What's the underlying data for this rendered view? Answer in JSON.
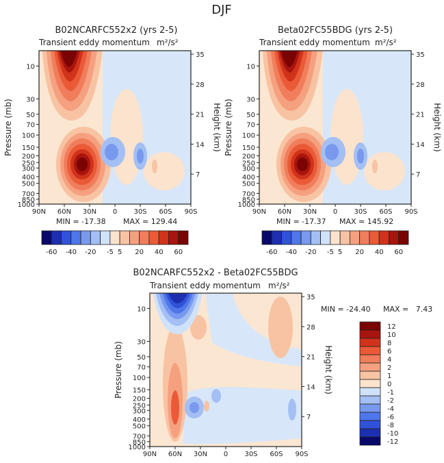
{
  "page_title": "DJF",
  "panels": [
    {
      "title": "B02NCARFC552x2 (yrs 2-5)",
      "subtitle": "Transient eddy momentum",
      "units": "m²/s²",
      "min_label": "MIN = -17.38",
      "max_label": "MAX = 129.44"
    },
    {
      "title": "Beta02FC55BDG (yrs 2-5)",
      "subtitle": "Transient eddy momentum",
      "units": "m²/s²",
      "min_label": "MIN = -17.37",
      "max_label": "MAX = 145.92"
    },
    {
      "title": "B02NCARFC552x2 - Beta02FC55BDG",
      "subtitle": "Transient eddy momentum",
      "units": "m²/s²",
      "min_label": "MIN = -24.40",
      "max_label": "MAX =   7.43"
    }
  ],
  "axes": {
    "ylabel_left": "Pressure (mb)",
    "ylabel_right": "Height (km)",
    "x_ticks": [
      "90N",
      "60N",
      "30N",
      "0",
      "30S",
      "60S",
      "90S"
    ],
    "p_ticks": [
      "10",
      "30",
      "50",
      "70",
      "100",
      "150",
      "200",
      "250",
      "300",
      "400",
      "500",
      "700",
      "850",
      "1000"
    ],
    "h_ticks": [
      "35",
      "28",
      "21",
      "14",
      "7"
    ]
  },
  "legend_top": {
    "labels": [
      "-60",
      "-40",
      "-20",
      "-5",
      "5",
      "20",
      "40",
      "60"
    ],
    "colors": [
      "#08086b",
      "#1c2fb0",
      "#2f52d8",
      "#4f76ea",
      "#7899ee",
      "#a3bff4",
      "#cfe2f9",
      "#fbe3cd",
      "#f8c3a3",
      "#f5a07f",
      "#f07d5b",
      "#ea5a37",
      "#d0331a",
      "#a8140e",
      "#7a0404"
    ]
  },
  "legend_diff": {
    "labels": [
      "12",
      "10",
      "8",
      "6",
      "4",
      "2",
      "1",
      "0",
      "-1",
      "-2",
      "-4",
      "-6",
      "-8",
      "-10",
      "-12"
    ],
    "colors": [
      "#7a0404",
      "#a8140e",
      "#d0331a",
      "#ea5a37",
      "#f07d5b",
      "#f5a07f",
      "#f8c3a3",
      "#fbe3cd",
      "#cfe2f9",
      "#a3bff4",
      "#7899ee",
      "#4f76ea",
      "#2f52d8",
      "#1c2fb0",
      "#08086b"
    ]
  },
  "chart_data": [
    {
      "type": "heatmap",
      "title": "B02NCARFC552x2 (yrs 2-5)",
      "subtitle": "Transient eddy momentum",
      "units": "m²/s²",
      "x": [
        "90N",
        "60N",
        "30N",
        "0",
        "30S",
        "60S",
        "90S"
      ],
      "ylabel": "Pressure (mb)",
      "y2label": "Height (km)",
      "min": -17.38,
      "max": 129.44,
      "features": [
        {
          "sign": "positive",
          "lat": 55,
          "pressure_mb": 8,
          "level": 100
        },
        {
          "sign": "positive",
          "lat": 38,
          "pressure_mb": 230,
          "level": 110
        },
        {
          "sign": "negative",
          "lat": 5,
          "pressure_mb": 170,
          "level": -15
        },
        {
          "sign": "negative",
          "lat": -25,
          "pressure_mb": 200,
          "level": -12
        },
        {
          "sign": "positive",
          "lat": -45,
          "pressure_mb": 260,
          "level": 5
        }
      ]
    },
    {
      "type": "heatmap",
      "title": "Beta02FC55BDG (yrs 2-5)",
      "subtitle": "Transient eddy momentum",
      "units": "m²/s²",
      "x": [
        "90N",
        "60N",
        "30N",
        "0",
        "30S",
        "60S",
        "90S"
      ],
      "ylabel": "Pressure (mb)",
      "y2label": "Height (km)",
      "min": -17.37,
      "max": 145.92,
      "features": [
        {
          "sign": "positive",
          "lat": 55,
          "pressure_mb": 8,
          "level": 110
        },
        {
          "sign": "positive",
          "lat": 38,
          "pressure_mb": 230,
          "level": 120
        },
        {
          "sign": "negative",
          "lat": 5,
          "pressure_mb": 170,
          "level": -15
        },
        {
          "sign": "negative",
          "lat": -25,
          "pressure_mb": 200,
          "level": -12
        },
        {
          "sign": "positive",
          "lat": -45,
          "pressure_mb": 260,
          "level": 5
        }
      ]
    },
    {
      "type": "heatmap",
      "title": "B02NCARFC552x2 - Beta02FC55BDG",
      "subtitle": "Transient eddy momentum",
      "units": "m²/s²",
      "x": [
        "90N",
        "60N",
        "30N",
        "0",
        "30S",
        "60S",
        "90S"
      ],
      "ylabel": "Pressure (mb)",
      "y2label": "Height (km)",
      "min": -24.4,
      "max": 7.43,
      "features": [
        {
          "sign": "negative",
          "lat": 58,
          "pressure_mb": 7,
          "level": -24
        },
        {
          "sign": "positive",
          "lat": 60,
          "pressure_mb": 280,
          "level": 7
        },
        {
          "sign": "negative",
          "lat": 30,
          "pressure_mb": 280,
          "level": -6
        },
        {
          "sign": "negative",
          "lat": 5,
          "pressure_mb": 180,
          "level": -4
        },
        {
          "sign": "positive",
          "lat": -65,
          "pressure_mb": 12,
          "level": 3
        },
        {
          "sign": "negative",
          "lat": -82,
          "pressure_mb": 290,
          "level": -4
        }
      ]
    }
  ]
}
